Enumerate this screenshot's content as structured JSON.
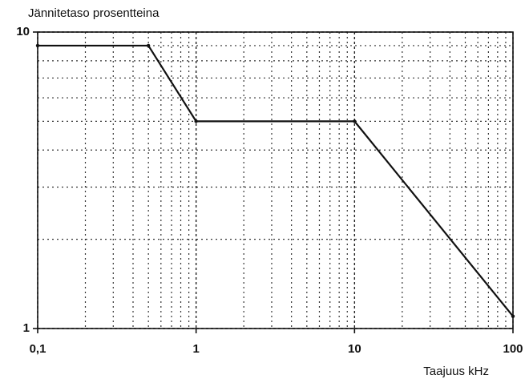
{
  "chart_data": {
    "type": "line",
    "y_label": "Jännitetaso prosentteina",
    "x_label": "Taajuus kHz",
    "x": [
      0.1,
      0.5,
      1,
      10,
      100
    ],
    "series": [
      {
        "color": "#111111",
        "values": [
          9,
          9,
          5,
          5,
          1.1
        ]
      }
    ],
    "xlim": [
      0.1,
      100
    ],
    "ylim": [
      1,
      10
    ],
    "xticks": [
      {
        "value": 0.1,
        "label": "0,1"
      },
      1,
      10,
      100
    ],
    "yticks": [
      1,
      10
    ],
    "xlog": true,
    "ylog": true,
    "grid": true,
    "minor_grid": true
  }
}
